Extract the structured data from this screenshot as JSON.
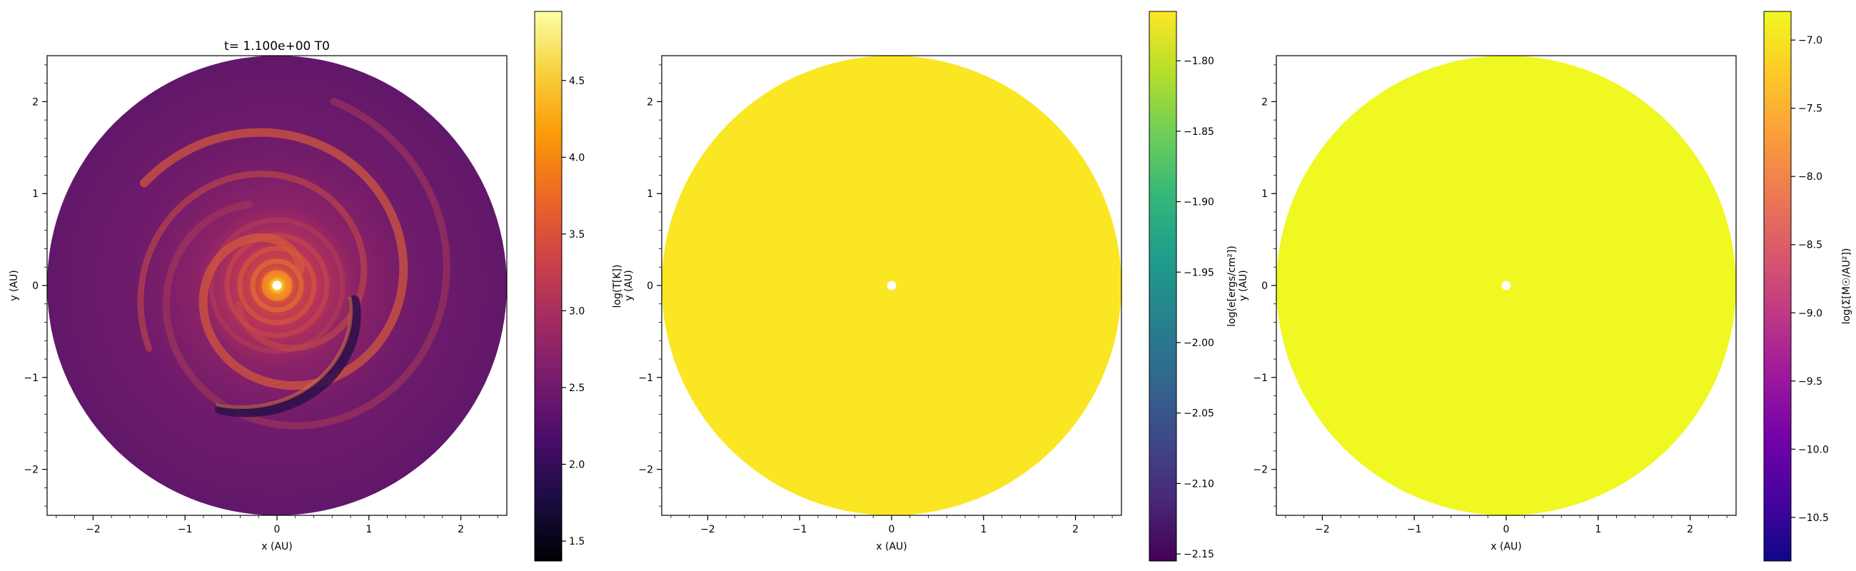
{
  "chart_data": [
    {
      "type": "heatmap",
      "title": "t= 1.100e+00 T0",
      "xlabel": "x (AU)",
      "ylabel": "y (AU)",
      "xlim": [
        -2.5,
        2.5
      ],
      "ylim": [
        -2.5,
        2.5
      ],
      "xticks": [
        "−2",
        "−1",
        "0",
        "1",
        "2"
      ],
      "yticks": [
        "−2",
        "−1",
        "0",
        "1",
        "2"
      ],
      "disk_radius": 2.5,
      "inner_hole_radius": 0.05,
      "field": "spiral-temperature",
      "colorbar": {
        "label": "log(T[K])",
        "range": [
          1.37,
          4.95
        ],
        "ticks": [
          "1.5",
          "2.0",
          "2.5",
          "3.0",
          "3.5",
          "4.0",
          "4.5"
        ],
        "tick_values": [
          1.5,
          2.0,
          2.5,
          3.0,
          3.5,
          4.0,
          4.5
        ],
        "colormap": "inferno",
        "stops": [
          "#000004",
          "#1b0c41",
          "#4a0c6b",
          "#781c6d",
          "#a52c60",
          "#cf4446",
          "#ed6925",
          "#fb9b06",
          "#f7d13d",
          "#fcffa4"
        ]
      }
    },
    {
      "type": "heatmap",
      "title": "",
      "xlabel": "x (AU)",
      "ylabel": "y (AU)",
      "xlim": [
        -2.5,
        2.5
      ],
      "ylim": [
        -2.5,
        2.5
      ],
      "xticks": [
        "−2",
        "−1",
        "0",
        "1",
        "2"
      ],
      "yticks": [
        "−2",
        "−1",
        "0",
        "1",
        "2"
      ],
      "disk_radius": 2.5,
      "inner_hole_radius": 0.05,
      "field": "uniform",
      "fill_color": "#fae622",
      "colorbar": {
        "label": "log(e[ergs/cm²])",
        "range": [
          -2.155,
          -1.765
        ],
        "ticks": [
          "−2.15",
          "−2.10",
          "−2.05",
          "−2.00",
          "−1.95",
          "−1.90",
          "−1.85",
          "−1.80"
        ],
        "tick_values": [
          -2.15,
          -2.1,
          -2.05,
          -2.0,
          -1.95,
          -1.9,
          -1.85,
          -1.8
        ],
        "colormap": "viridis",
        "stops": [
          "#440154",
          "#482878",
          "#3e4989",
          "#31688e",
          "#26828e",
          "#1f9e89",
          "#35b779",
          "#6ece58",
          "#b5de2b",
          "#fde725"
        ]
      }
    },
    {
      "type": "heatmap",
      "title": "",
      "xlabel": "x (AU)",
      "ylabel": "y (AU)",
      "xlim": [
        -2.5,
        2.5
      ],
      "ylim": [
        -2.5,
        2.5
      ],
      "xticks": [
        "−2",
        "−1",
        "0",
        "1",
        "2"
      ],
      "yticks": [
        "−2",
        "−1",
        "0",
        "1",
        "2"
      ],
      "disk_radius": 2.5,
      "inner_hole_radius": 0.05,
      "field": "uniform",
      "fill_color": "#eff821",
      "colorbar": {
        "label": "log(Σ[M☉/AU²])",
        "range": [
          -10.82,
          -6.79
        ],
        "ticks": [
          "−10.5",
          "−10.0",
          "−9.5",
          "−9.0",
          "−8.5",
          "−8.0",
          "−7.5",
          "−7.0"
        ],
        "tick_values": [
          -10.5,
          -10.0,
          -9.5,
          -9.0,
          -8.5,
          -8.0,
          -7.5,
          -7.0
        ],
        "colormap": "plasma",
        "stops": [
          "#0d0887",
          "#46039f",
          "#7201a8",
          "#9c179e",
          "#bd3786",
          "#d8576b",
          "#ed7953",
          "#fb9f3a",
          "#fdca26",
          "#f0f921"
        ]
      }
    }
  ]
}
